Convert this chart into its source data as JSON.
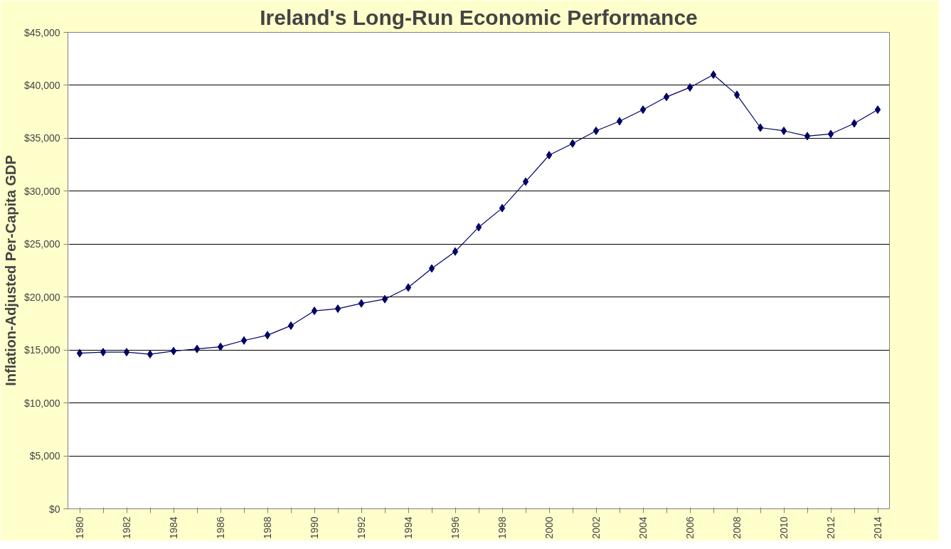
{
  "chart_data": {
    "type": "line",
    "title": "Ireland's Long-Run Economic Performance",
    "ylabel": "Inflation-Adjusted Per-Capita GDP",
    "categories": [
      "1980",
      null,
      "1982",
      null,
      "1984",
      null,
      "1986",
      null,
      "1988",
      null,
      "1990",
      null,
      "1992",
      null,
      "1994",
      null,
      "1996",
      null,
      "1998",
      null,
      "2000",
      null,
      "2002",
      null,
      "2004",
      null,
      "2006",
      null,
      "2008",
      null,
      "2010",
      null,
      "2012",
      null,
      "2014"
    ],
    "series": [
      {
        "color": "#000066",
        "values": [
          14700,
          14800,
          14800,
          14600,
          14900,
          15100,
          15300,
          15900,
          16400,
          17300,
          18700,
          18900,
          19400,
          19800,
          20900,
          22700,
          24300,
          26600,
          28400,
          30900,
          33400,
          34500,
          35700,
          36600,
          37700,
          38900,
          39800,
          41000,
          39100,
          36000,
          35700,
          35200,
          35400,
          36400,
          37700
        ]
      }
    ],
    "ylim": [
      0,
      45000
    ],
    "yticks": [
      {
        "value": 0,
        "label": "$0"
      },
      {
        "value": 5000,
        "label": "$5,000"
      },
      {
        "value": 10000,
        "label": "$10,000"
      },
      {
        "value": 15000,
        "label": "$15,000"
      },
      {
        "value": 20000,
        "label": "$20,000"
      },
      {
        "value": 25000,
        "label": "$25,000"
      },
      {
        "value": 30000,
        "label": "$30,000"
      },
      {
        "value": 35000,
        "label": "$35,000"
      },
      {
        "value": 40000,
        "label": "$40,000"
      },
      {
        "value": 45000,
        "label": "$45,000"
      }
    ],
    "grid": "y",
    "marker": "diamond",
    "line_style": "solid"
  }
}
